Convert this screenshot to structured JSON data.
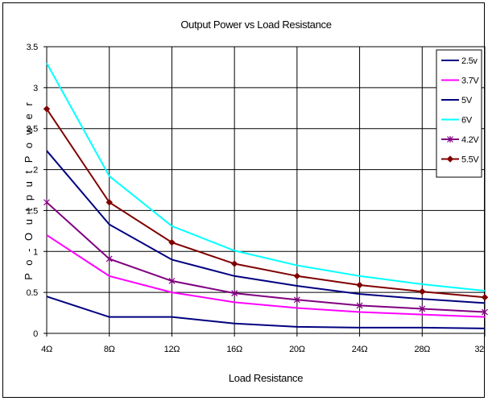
{
  "chart_data": {
    "type": "line",
    "title": "Output Power vs Load Resistance",
    "xlabel": "Load Resistance",
    "ylabel": "P o - O u t p u t   P o w e r",
    "categories": [
      "4Ω",
      "8Ω",
      "12Ω",
      "16Ω",
      "20Ω",
      "24Ω",
      "28Ω",
      "32Ω"
    ],
    "x_tick_labels": [
      "4Ω",
      "8Ω",
      "12Ω",
      "16Ω",
      "20Ω",
      "24Ω",
      "28Ω",
      "32"
    ],
    "ylim": [
      0,
      3.5
    ],
    "y_ticks": [
      "0",
      "0.5",
      "1",
      "1.5",
      "2",
      "2.5",
      "3",
      "3.5"
    ],
    "grid": true,
    "legend_position": "top-right",
    "series": [
      {
        "name": "2.5v",
        "color": "#000080",
        "marker": "none",
        "values": [
          0.45,
          0.2,
          0.2,
          0.12,
          0.08,
          0.07,
          0.07,
          0.06
        ]
      },
      {
        "name": "3.7V",
        "color": "#ff00ff",
        "marker": "none",
        "values": [
          1.2,
          0.7,
          0.5,
          0.38,
          0.31,
          0.26,
          0.23,
          0.2
        ]
      },
      {
        "name": "5V",
        "color": "#000080",
        "marker": "none",
        "values": [
          2.23,
          1.33,
          0.9,
          0.7,
          0.58,
          0.48,
          0.42,
          0.37
        ]
      },
      {
        "name": "6V",
        "color": "#00ffff",
        "marker": "none",
        "values": [
          3.3,
          1.92,
          1.31,
          1.01,
          0.83,
          0.7,
          0.6,
          0.52
        ]
      },
      {
        "name": "4.2V",
        "color": "#800080",
        "marker": "star",
        "values": [
          1.6,
          0.91,
          0.64,
          0.49,
          0.41,
          0.34,
          0.3,
          0.26
        ]
      },
      {
        "name": "5.5V",
        "color": "#800000",
        "marker": "diamond",
        "values": [
          2.74,
          1.6,
          1.11,
          0.85,
          0.7,
          0.59,
          0.51,
          0.44
        ]
      }
    ]
  }
}
